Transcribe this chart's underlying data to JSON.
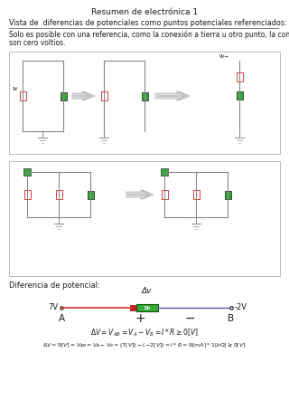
{
  "title": "Resumen de electrónica 1",
  "subtitle": "Vista de  diferencias de potenciales como puntos potenciales referenciados:",
  "body_line1": "Solo es posible con una referencia, como la conexión a tierra u otro punto, la conexión a tierra",
  "body_line2": "son cero voltios.",
  "section_label": "Diferencia de potencial:",
  "eq1": "ΔV = Vₐᴅ = Vₐ − Vᴅ = I * R ≥ 0[V]",
  "eq2": "ΔV = 9[V] = Vₐᴅ = Vₐ − Vᴅ = (7[V]) − (−2[V]) = I * R = 9[mA] * 1[kΩ] ≥ 0[V]",
  "dv_label": "Δv",
  "node_a": "A",
  "node_b": "B",
  "voltage_7v": "7V",
  "voltage_m2v": "-2V",
  "resistor_label": "1k",
  "bg_color": "#ffffff",
  "text_color": "#1a1a1a",
  "line_color": "#888888",
  "green_color": "#33aa33",
  "red_color": "#cc2222",
  "box_color": "#bbbbbb",
  "blue_color": "#3333cc",
  "wire_color": "#5555aa"
}
